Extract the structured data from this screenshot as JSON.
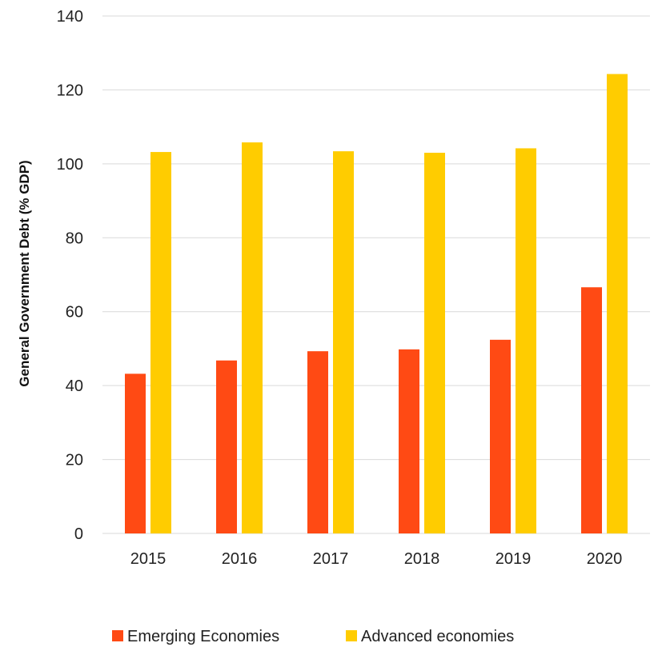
{
  "chart_data": {
    "type": "bar",
    "title": "",
    "xlabel": "",
    "ylabel": "General Government Debt (% GDP)",
    "categories": [
      "2015",
      "2016",
      "2017",
      "2018",
      "2019",
      "2020"
    ],
    "series": [
      {
        "name": "Emerging Economies",
        "color": "#FF4A14",
        "values": [
          43.2,
          46.8,
          49.3,
          49.8,
          52.4,
          66.6
        ]
      },
      {
        "name": "Advanced economies",
        "color": "#FFCC00",
        "values": [
          103.2,
          105.8,
          103.4,
          103.0,
          104.2,
          124.3
        ]
      }
    ],
    "ylim": [
      0,
      140
    ],
    "yticks": [
      "0",
      "20",
      "40",
      "60",
      "80",
      "100",
      "120",
      "140"
    ],
    "grid": true,
    "legend": "bottom"
  }
}
